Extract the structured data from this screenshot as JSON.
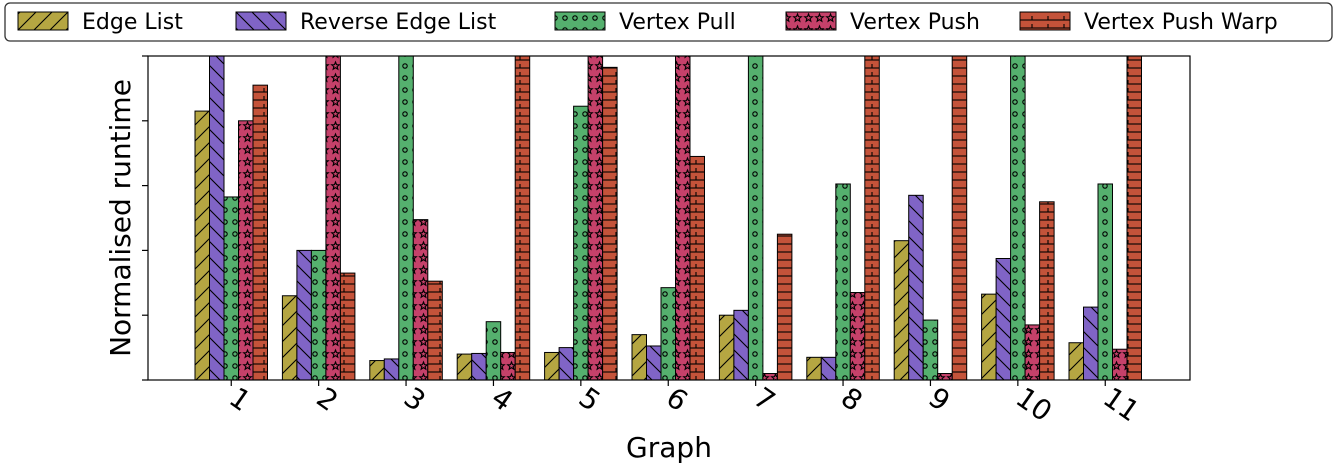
{
  "chart_data": {
    "type": "bar",
    "xlabel": "Graph",
    "ylabel": "Normalised runtime",
    "categories": [
      "1",
      "2",
      "3",
      "4",
      "5",
      "6",
      "7",
      "8",
      "9",
      "10",
      "11"
    ],
    "ylim": [
      0,
      1
    ],
    "y_tick_labels_shown": false,
    "legend_position": "top",
    "series": [
      {
        "name": "Edge List",
        "color": "#b5a642",
        "hatch": "diagonal",
        "values": [
          0.83,
          0.26,
          0.06,
          0.08,
          0.085,
          0.14,
          0.2,
          0.07,
          0.43,
          0.265,
          0.115
        ]
      },
      {
        "name": "Reverse Edge List",
        "color": "#8064c6",
        "hatch": "backslash",
        "values": [
          1.0,
          0.4,
          0.065,
          0.082,
          0.1,
          0.105,
          0.215,
          0.07,
          0.57,
          0.375,
          0.225
        ]
      },
      {
        "name": "Vertex Pull",
        "color": "#55b06e",
        "hatch": "circles",
        "values": [
          0.565,
          0.4,
          1.0,
          0.18,
          0.845,
          0.285,
          1.0,
          0.605,
          0.185,
          1.0,
          0.605
        ]
      },
      {
        "name": "Vertex Push",
        "color": "#c5416a",
        "hatch": "stars",
        "values": [
          0.8,
          1.0,
          0.495,
          0.085,
          1.0,
          1.0,
          0.02,
          0.27,
          0.02,
          0.17,
          0.095
        ]
      },
      {
        "name": "Vertex Push Warp",
        "color": "#c4533a",
        "hatch": "horizontal",
        "values": [
          0.91,
          0.33,
          0.305,
          1.0,
          0.965,
          0.69,
          0.45,
          1.0,
          1.0,
          0.55,
          1.0
        ]
      }
    ]
  }
}
